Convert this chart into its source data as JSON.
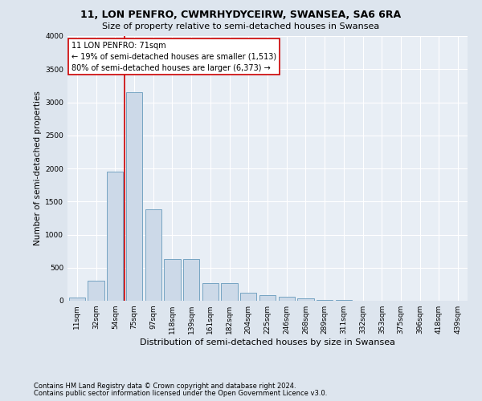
{
  "title": "11, LON PENFRO, CWMRHYDYCEIRW, SWANSEA, SA6 6RA",
  "subtitle": "Size of property relative to semi-detached houses in Swansea",
  "xlabel": "Distribution of semi-detached houses by size in Swansea",
  "ylabel": "Number of semi-detached properties",
  "footnote1": "Contains HM Land Registry data © Crown copyright and database right 2024.",
  "footnote2": "Contains public sector information licensed under the Open Government Licence v3.0.",
  "bar_labels": [
    "11sqm",
    "32sqm",
    "54sqm",
    "75sqm",
    "97sqm",
    "118sqm",
    "139sqm",
    "161sqm",
    "182sqm",
    "204sqm",
    "225sqm",
    "246sqm",
    "268sqm",
    "289sqm",
    "311sqm",
    "332sqm",
    "353sqm",
    "375sqm",
    "396sqm",
    "418sqm",
    "439sqm"
  ],
  "bar_values": [
    50,
    300,
    1950,
    3150,
    1380,
    630,
    630,
    270,
    270,
    120,
    80,
    60,
    40,
    15,
    8,
    5,
    5,
    5,
    5,
    5,
    5
  ],
  "bar_color": "#ccd9e8",
  "bar_edge_color": "#6699bb",
  "annotation_title": "11 LON PENFRO: 71sqm",
  "annotation_line1": "← 19% of semi-detached houses are smaller (1,513)",
  "annotation_line2": "80% of semi-detached houses are larger (6,373) →",
  "vline_bin_index": 3,
  "vline_color": "#cc0000",
  "annotation_box_color": "#ffffff",
  "annotation_box_edge_color": "#cc0000",
  "ylim": [
    0,
    4000
  ],
  "yticks": [
    0,
    500,
    1000,
    1500,
    2000,
    2500,
    3000,
    3500,
    4000
  ],
  "bg_color": "#dde5ee",
  "plot_bg_color": "#e8eef5",
  "grid_color": "#ffffff",
  "title_fontsize": 9,
  "subtitle_fontsize": 8,
  "ylabel_fontsize": 7.5,
  "xlabel_fontsize": 8,
  "tick_fontsize": 6.5,
  "annotation_fontsize": 7,
  "footnote_fontsize": 6
}
